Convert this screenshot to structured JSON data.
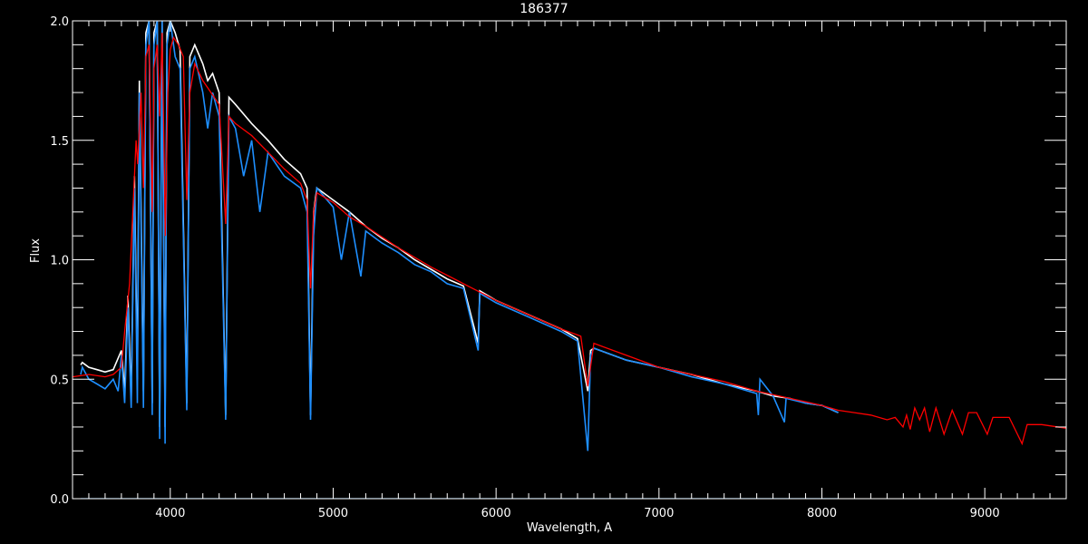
{
  "chart_data": {
    "type": "line",
    "title": "186377",
    "xlabel": "Wavelength, A",
    "ylabel": "Flux",
    "xlim": [
      3400,
      9500
    ],
    "ylim": [
      0.0,
      2.0
    ],
    "xticks": [
      "4000",
      "5000",
      "6000",
      "7000",
      "8000",
      "9000"
    ],
    "yticks": [
      "0.0",
      "0.5",
      "1.0",
      "1.5",
      "2.0"
    ],
    "grid": false,
    "background": "#000000",
    "series": [
      {
        "color": "#ffffff",
        "x": [
          3450,
          3460,
          3500,
          3550,
          3600,
          3650,
          3700,
          3720,
          3740,
          3760,
          3780,
          3798,
          3810,
          3835,
          3850,
          3870,
          3889,
          3900,
          3920,
          3935,
          3950,
          3968,
          3980,
          4000,
          4030,
          4060,
          4101,
          4120,
          4150,
          4200,
          4230,
          4260,
          4300,
          4340,
          4360,
          4400,
          4500,
          4600,
          4700,
          4800,
          4840,
          4861,
          4880,
          4900,
          5000,
          5100,
          5200,
          5300,
          5400,
          5500,
          5600,
          5700,
          5800,
          5890,
          5900,
          6000,
          6200,
          6400,
          6500,
          6563,
          6580,
          6600,
          6800,
          7000,
          7200,
          7400,
          7600,
          7700,
          7800,
          7900,
          8000,
          8100
        ],
        "y": [
          0.56,
          0.57,
          0.55,
          0.54,
          0.53,
          0.54,
          0.62,
          0.45,
          0.85,
          0.42,
          1.35,
          0.5,
          1.75,
          0.45,
          1.95,
          2.0,
          0.4,
          1.95,
          2.0,
          0.3,
          2.0,
          0.3,
          1.95,
          2.0,
          1.95,
          1.88,
          0.4,
          1.85,
          1.9,
          1.82,
          1.75,
          1.78,
          1.7,
          0.35,
          1.68,
          1.65,
          1.57,
          1.5,
          1.42,
          1.36,
          1.3,
          0.35,
          1.2,
          1.3,
          1.25,
          1.2,
          1.14,
          1.09,
          1.05,
          1.0,
          0.96,
          0.92,
          0.89,
          0.65,
          0.87,
          0.83,
          0.77,
          0.71,
          0.67,
          0.45,
          0.62,
          0.63,
          0.58,
          0.55,
          0.52,
          0.48,
          0.45,
          0.43,
          0.42,
          0.4,
          0.39,
          0.36
        ]
      },
      {
        "color": "#1e8fff",
        "x": [
          3450,
          3460,
          3500,
          3550,
          3600,
          3650,
          3680,
          3700,
          3720,
          3740,
          3760,
          3780,
          3798,
          3810,
          3835,
          3850,
          3870,
          3889,
          3900,
          3920,
          3935,
          3950,
          3968,
          3980,
          4000,
          4030,
          4060,
          4101,
          4120,
          4150,
          4200,
          4230,
          4260,
          4300,
          4340,
          4360,
          4400,
          4450,
          4500,
          4550,
          4600,
          4700,
          4800,
          4840,
          4861,
          4880,
          4900,
          5000,
          5050,
          5100,
          5170,
          5200,
          5300,
          5400,
          5500,
          5600,
          5700,
          5800,
          5890,
          5900,
          6000,
          6200,
          6400,
          6500,
          6563,
          6580,
          6600,
          6800,
          7000,
          7200,
          7400,
          7600,
          7610,
          7620,
          7700,
          7770,
          7780,
          7900,
          8000,
          8100
        ],
        "y": [
          0.52,
          0.55,
          0.5,
          0.48,
          0.46,
          0.5,
          0.45,
          0.6,
          0.4,
          0.8,
          0.38,
          1.3,
          0.4,
          1.7,
          0.38,
          1.9,
          2.0,
          0.35,
          1.9,
          2.0,
          0.25,
          2.0,
          0.23,
          1.9,
          2.0,
          1.85,
          1.8,
          0.37,
          1.8,
          1.85,
          1.7,
          1.55,
          1.7,
          1.6,
          0.33,
          1.6,
          1.55,
          1.35,
          1.5,
          1.2,
          1.45,
          1.35,
          1.3,
          1.2,
          0.33,
          1.1,
          1.3,
          1.22,
          1.0,
          1.2,
          0.93,
          1.12,
          1.07,
          1.03,
          0.98,
          0.95,
          0.9,
          0.88,
          0.62,
          0.86,
          0.82,
          0.76,
          0.7,
          0.66,
          0.2,
          0.6,
          0.63,
          0.58,
          0.55,
          0.51,
          0.48,
          0.44,
          0.35,
          0.5,
          0.43,
          0.32,
          0.42,
          0.4,
          0.39,
          0.36
        ]
      },
      {
        "color": "#1e8fff",
        "x": [
          3450,
          8100
        ],
        "y": [
          0.0,
          0.0
        ]
      },
      {
        "color": "#ff0000",
        "x": [
          3400,
          3500,
          3600,
          3650,
          3700,
          3720,
          3750,
          3770,
          3790,
          3800,
          3820,
          3835,
          3850,
          3870,
          3889,
          3900,
          3920,
          3935,
          3950,
          3970,
          3985,
          4000,
          4020,
          4050,
          4080,
          4101,
          4120,
          4150,
          4200,
          4250,
          4300,
          4340,
          4360,
          4400,
          4500,
          4600,
          4700,
          4800,
          4840,
          4861,
          4880,
          4900,
          5000,
          5100,
          5200,
          5400,
          5600,
          5800,
          6000,
          6200,
          6400,
          6520,
          6563,
          6600,
          6800,
          7000,
          7200,
          7400,
          7600,
          7800,
          8000,
          8100,
          8200,
          8300,
          8400,
          8450,
          8498,
          8520,
          8542,
          8570,
          8600,
          8630,
          8662,
          8700,
          8750,
          8800,
          8863,
          8900,
          8950,
          9015,
          9050,
          9150,
          9229,
          9260,
          9350,
          9500
        ],
        "y": [
          0.51,
          0.52,
          0.51,
          0.52,
          0.55,
          0.7,
          0.9,
          1.2,
          1.5,
          1.4,
          1.7,
          1.3,
          1.85,
          1.9,
          1.2,
          1.8,
          1.9,
          1.6,
          1.95,
          1.1,
          1.7,
          1.88,
          1.93,
          1.9,
          1.85,
          1.25,
          1.7,
          1.82,
          1.75,
          1.7,
          1.65,
          1.15,
          1.6,
          1.57,
          1.52,
          1.45,
          1.38,
          1.32,
          1.25,
          0.88,
          1.2,
          1.28,
          1.24,
          1.18,
          1.14,
          1.05,
          0.97,
          0.9,
          0.83,
          0.77,
          0.71,
          0.68,
          0.47,
          0.65,
          0.6,
          0.55,
          0.52,
          0.49,
          0.45,
          0.42,
          0.39,
          0.37,
          0.36,
          0.35,
          0.33,
          0.34,
          0.3,
          0.35,
          0.29,
          0.38,
          0.33,
          0.38,
          0.28,
          0.38,
          0.27,
          0.37,
          0.27,
          0.36,
          0.36,
          0.27,
          0.34,
          0.34,
          0.23,
          0.31,
          0.31,
          0.295
        ]
      }
    ]
  }
}
